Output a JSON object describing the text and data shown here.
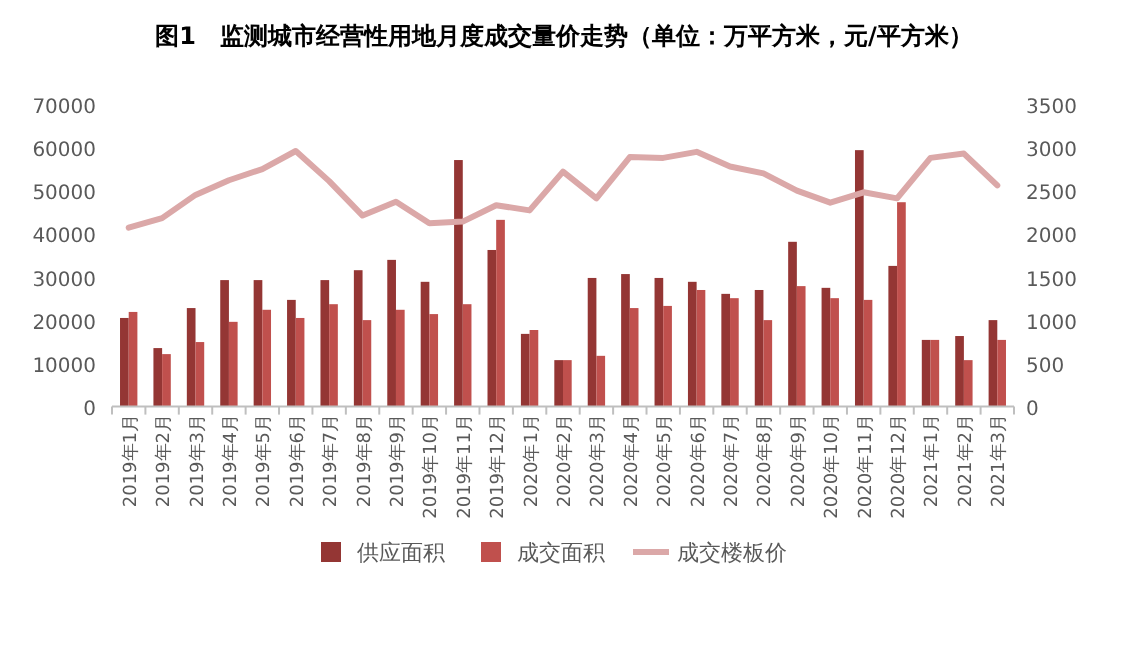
{
  "chart_data": {
    "type": "bar",
    "title": "图1　监测城市经营性用地月度成交量价走势（单位：万平方米，元/平方米）",
    "categories": [
      "2019年1月",
      "2019年2月",
      "2019年3月",
      "2019年4月",
      "2019年5月",
      "2019年6月",
      "2019年7月",
      "2019年8月",
      "2019年9月",
      "2019年10月",
      "2019年11月",
      "2019年12月",
      "2020年1月",
      "2020年2月",
      "2020年3月",
      "2020年4月",
      "2020年5月",
      "2020年6月",
      "2020年7月",
      "2020年8月",
      "2020年9月",
      "2020年10月",
      "2020年11月",
      "2020年12月",
      "2021年1月",
      "2021年2月",
      "2021年3月"
    ],
    "series": [
      {
        "name": "供应面积",
        "color": "#943634",
        "values": [
          20600,
          13600,
          22900,
          29400,
          29400,
          24800,
          29400,
          31700,
          34100,
          29000,
          57300,
          36400,
          16900,
          10800,
          29900,
          30800,
          29900,
          29000,
          26200,
          27100,
          38300,
          27600,
          59600,
          32700,
          15500,
          16400,
          20100
        ]
      },
      {
        "name": "成交面积",
        "color": "#c0504d",
        "values": [
          22000,
          12200,
          15000,
          19700,
          22500,
          20600,
          23800,
          20100,
          22500,
          21500,
          23800,
          43400,
          17800,
          10800,
          11800,
          22900,
          23400,
          27100,
          25200,
          20100,
          28000,
          25200,
          24800,
          47500,
          15500,
          10800,
          15500
        ]
      },
      {
        "name": "成交楼板价",
        "type": "line",
        "axis": "y2",
        "color": "#dba8a8",
        "values": [
          2080,
          2190,
          2460,
          2630,
          2760,
          2970,
          2620,
          2220,
          2380,
          2130,
          2150,
          2340,
          2280,
          2730,
          2420,
          2900,
          2890,
          2960,
          2790,
          2710,
          2510,
          2370,
          2490,
          2420,
          2890,
          2940,
          2570
        ]
      }
    ],
    "ylim": [
      0,
      70000
    ],
    "yticks": [
      0,
      10000,
      20000,
      30000,
      40000,
      50000,
      60000,
      70000
    ],
    "y2lim": [
      0,
      3500
    ],
    "y2ticks": [
      0,
      500,
      1000,
      1500,
      2000,
      2500,
      3000,
      3500
    ],
    "grid": false,
    "legend": "bottom"
  }
}
